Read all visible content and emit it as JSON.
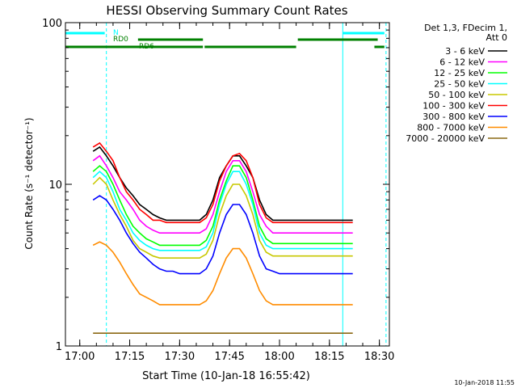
{
  "chart_data": {
    "type": "line",
    "title": "HESSI Observing Summary Count Rates",
    "xlabel": "Start Time (10-Jan-18 16:55:42)",
    "ylabel": "Count Rate (s⁻¹ detector⁻¹)",
    "y_scale": "log",
    "ylim": [
      1,
      100
    ],
    "xlim": [
      "16:55:42",
      "18:33:00"
    ],
    "x_ticks": [
      "17:00",
      "17:15",
      "17:30",
      "17:45",
      "18:00",
      "18:15",
      "18:30"
    ],
    "y_ticks": [
      "1",
      "10",
      "100"
    ],
    "grid": false,
    "legend_position": "right",
    "legend_header": [
      "Det 1,3, FDecim 1,",
      "Att 0"
    ],
    "series": [
      {
        "name": "3 - 6 keV",
        "color": "#000000",
        "x": [
          "17:04",
          "17:06",
          "17:08",
          "17:10",
          "17:12",
          "17:14",
          "17:16",
          "17:18",
          "17:20",
          "17:22",
          "17:24",
          "17:26",
          "17:28",
          "17:30",
          "17:32",
          "17:34",
          "17:36",
          "17:38",
          "17:40",
          "17:42",
          "17:44",
          "17:46",
          "17:48",
          "17:50",
          "17:52",
          "17:54",
          "17:56",
          "17:58",
          "18:00",
          "18:02",
          "18:04",
          "18:06",
          "18:08",
          "18:10",
          "18:12",
          "18:14",
          "18:16",
          "18:18",
          "18:20",
          "18:22"
        ],
        "values": [
          16,
          17,
          15,
          13,
          11,
          9.5,
          8.5,
          7.5,
          7,
          6.5,
          6.2,
          6,
          6,
          6,
          6,
          6,
          6,
          6.5,
          8,
          11,
          13,
          15,
          15,
          13,
          11,
          8,
          6.5,
          6,
          6,
          6,
          6,
          6,
          6,
          6,
          6,
          6,
          6,
          6,
          6,
          6
        ]
      },
      {
        "name": "6 - 12 keV",
        "color": "#ff00ff",
        "x": [
          "17:04",
          "17:06",
          "17:08",
          "17:10",
          "17:12",
          "17:14",
          "17:16",
          "17:18",
          "17:20",
          "17:22",
          "17:24",
          "17:26",
          "17:28",
          "17:30",
          "17:32",
          "17:34",
          "17:36",
          "17:38",
          "17:40",
          "17:42",
          "17:44",
          "17:46",
          "17:48",
          "17:50",
          "17:52",
          "17:54",
          "17:56",
          "17:58",
          "18:00",
          "18:02",
          "18:04",
          "18:06",
          "18:08",
          "18:10",
          "18:12",
          "18:14",
          "18:16",
          "18:18",
          "18:20",
          "18:22"
        ],
        "values": [
          14,
          15,
          13,
          11,
          9,
          8,
          7,
          6,
          5.5,
          5.2,
          5,
          5,
          5,
          5,
          5,
          5,
          5,
          5.3,
          6.5,
          9,
          12,
          14,
          14,
          12,
          9,
          6.5,
          5.5,
          5,
          5,
          5,
          5,
          5,
          5,
          5,
          5,
          5,
          5,
          5,
          5,
          5
        ]
      },
      {
        "name": "12 - 25 keV",
        "color": "#00ff00",
        "x": [
          "17:04",
          "17:06",
          "17:08",
          "17:10",
          "17:12",
          "17:14",
          "17:16",
          "17:18",
          "17:20",
          "17:22",
          "17:24",
          "17:26",
          "17:28",
          "17:30",
          "17:32",
          "17:34",
          "17:36",
          "17:38",
          "17:40",
          "17:42",
          "17:44",
          "17:46",
          "17:48",
          "17:50",
          "17:52",
          "17:54",
          "17:56",
          "17:58",
          "18:00",
          "18:02",
          "18:04",
          "18:06",
          "18:08",
          "18:10",
          "18:12",
          "18:14",
          "18:16",
          "18:18",
          "18:20",
          "18:22"
        ],
        "values": [
          12,
          13,
          12,
          10,
          8,
          6.5,
          5.5,
          5,
          4.6,
          4.4,
          4.2,
          4.2,
          4.2,
          4.2,
          4.2,
          4.2,
          4.2,
          4.5,
          5.5,
          8,
          10.5,
          13,
          13,
          11,
          8,
          5.5,
          4.6,
          4.3,
          4.3,
          4.3,
          4.3,
          4.3,
          4.3,
          4.3,
          4.3,
          4.3,
          4.3,
          4.3,
          4.3,
          4.3
        ]
      },
      {
        "name": "25 - 50 keV",
        "color": "#00ffff",
        "x": [
          "17:04",
          "17:06",
          "17:08",
          "17:10",
          "17:12",
          "17:14",
          "17:16",
          "17:18",
          "17:20",
          "17:22",
          "17:24",
          "17:26",
          "17:28",
          "17:30",
          "17:32",
          "17:34",
          "17:36",
          "17:38",
          "17:40",
          "17:42",
          "17:44",
          "17:46",
          "17:48",
          "17:50",
          "17:52",
          "17:54",
          "17:56",
          "17:58",
          "18:00",
          "18:02",
          "18:04",
          "18:06",
          "18:08",
          "18:10",
          "18:12",
          "18:14",
          "18:16",
          "18:18",
          "18:20",
          "18:22"
        ],
        "values": [
          11,
          12,
          11,
          9,
          7,
          6,
          5,
          4.5,
          4.2,
          4,
          3.9,
          3.9,
          3.9,
          3.9,
          3.9,
          3.9,
          3.9,
          4.1,
          5,
          7.5,
          10,
          12,
          12,
          10,
          7.5,
          5,
          4.2,
          4,
          4,
          4,
          4,
          4,
          4,
          4,
          4,
          4,
          4,
          4,
          4,
          4
        ]
      },
      {
        "name": "50 - 100 keV",
        "color": "#c8c800",
        "x": [
          "17:04",
          "17:06",
          "17:08",
          "17:10",
          "17:12",
          "17:14",
          "17:16",
          "17:18",
          "17:20",
          "17:22",
          "17:24",
          "17:26",
          "17:28",
          "17:30",
          "17:32",
          "17:34",
          "17:36",
          "17:38",
          "17:40",
          "17:42",
          "17:44",
          "17:46",
          "17:48",
          "17:50",
          "17:52",
          "17:54",
          "17:56",
          "17:58",
          "18:00",
          "18:02",
          "18:04",
          "18:06",
          "18:08",
          "18:10",
          "18:12",
          "18:14",
          "18:16",
          "18:18",
          "18:20",
          "18:22"
        ],
        "values": [
          10,
          11,
          10,
          8,
          6.5,
          5.5,
          4.5,
          4,
          3.8,
          3.6,
          3.5,
          3.5,
          3.5,
          3.5,
          3.5,
          3.5,
          3.5,
          3.7,
          4.5,
          6.5,
          8.5,
          10,
          10,
          8.5,
          6.5,
          4.5,
          3.8,
          3.6,
          3.6,
          3.6,
          3.6,
          3.6,
          3.6,
          3.6,
          3.6,
          3.6,
          3.6,
          3.6,
          3.6,
          3.6
        ]
      },
      {
        "name": "100 - 300 keV",
        "color": "#ff0000",
        "x": [
          "17:04",
          "17:06",
          "17:08",
          "17:10",
          "17:12",
          "17:14",
          "17:16",
          "17:18",
          "17:20",
          "17:22",
          "17:24",
          "17:26",
          "17:28",
          "17:30",
          "17:32",
          "17:34",
          "17:36",
          "17:38",
          "17:40",
          "17:42",
          "17:44",
          "17:46",
          "17:48",
          "17:50",
          "17:52",
          "17:54",
          "17:56",
          "17:58",
          "18:00",
          "18:02",
          "18:04",
          "18:06",
          "18:08",
          "18:10",
          "18:12",
          "18:14",
          "18:16",
          "18:18",
          "18:20",
          "18:22"
        ],
        "values": [
          17,
          18,
          16,
          14,
          11,
          9,
          8,
          7,
          6.5,
          6,
          6,
          5.8,
          5.8,
          5.8,
          5.8,
          5.8,
          5.8,
          6.2,
          7.5,
          10.5,
          13,
          15,
          15.5,
          14,
          11,
          7.5,
          6.2,
          5.8,
          5.8,
          5.8,
          5.8,
          5.8,
          5.8,
          5.8,
          5.8,
          5.8,
          5.8,
          5.8,
          5.8,
          5.8
        ]
      },
      {
        "name": "300 - 800 keV",
        "color": "#0000ff",
        "x": [
          "17:04",
          "17:06",
          "17:08",
          "17:10",
          "17:12",
          "17:14",
          "17:16",
          "17:18",
          "17:20",
          "17:22",
          "17:24",
          "17:26",
          "17:28",
          "17:30",
          "17:32",
          "17:34",
          "17:36",
          "17:38",
          "17:40",
          "17:42",
          "17:44",
          "17:46",
          "17:48",
          "17:50",
          "17:52",
          "17:54",
          "17:56",
          "17:58",
          "18:00",
          "18:02",
          "18:04",
          "18:06",
          "18:08",
          "18:10",
          "18:12",
          "18:14",
          "18:16",
          "18:18",
          "18:20",
          "18:22"
        ],
        "values": [
          8,
          8.5,
          8,
          7,
          6,
          5,
          4.3,
          3.8,
          3.5,
          3.2,
          3,
          2.9,
          2.9,
          2.8,
          2.8,
          2.8,
          2.8,
          3,
          3.6,
          5,
          6.5,
          7.5,
          7.5,
          6.5,
          5,
          3.6,
          3,
          2.9,
          2.8,
          2.8,
          2.8,
          2.8,
          2.8,
          2.8,
          2.8,
          2.8,
          2.8,
          2.8,
          2.8,
          2.8
        ]
      },
      {
        "name": "800 - 7000 keV",
        "color": "#ff8c00",
        "x": [
          "17:04",
          "17:06",
          "17:08",
          "17:10",
          "17:12",
          "17:14",
          "17:16",
          "17:18",
          "17:20",
          "17:22",
          "17:24",
          "17:26",
          "17:28",
          "17:30",
          "17:32",
          "17:34",
          "17:36",
          "17:38",
          "17:40",
          "17:42",
          "17:44",
          "17:46",
          "17:48",
          "17:50",
          "17:52",
          "17:54",
          "17:56",
          "17:58",
          "18:00",
          "18:02",
          "18:04",
          "18:06",
          "18:08",
          "18:10",
          "18:12",
          "18:14",
          "18:16",
          "18:18",
          "18:20",
          "18:22"
        ],
        "values": [
          4.2,
          4.4,
          4.2,
          3.8,
          3.3,
          2.8,
          2.4,
          2.1,
          2,
          1.9,
          1.8,
          1.8,
          1.8,
          1.8,
          1.8,
          1.8,
          1.8,
          1.9,
          2.2,
          2.8,
          3.5,
          4,
          4,
          3.5,
          2.8,
          2.2,
          1.9,
          1.8,
          1.8,
          1.8,
          1.8,
          1.8,
          1.8,
          1.8,
          1.8,
          1.8,
          1.8,
          1.8,
          1.8,
          1.8
        ]
      },
      {
        "name": "7000 - 20000 keV",
        "color": "#8b6914",
        "x": [
          "17:04",
          "17:06",
          "17:08",
          "17:10",
          "17:12",
          "17:14",
          "17:16",
          "17:18",
          "17:20",
          "17:22",
          "17:24",
          "17:26",
          "17:28",
          "17:30",
          "17:32",
          "17:34",
          "17:36",
          "17:38",
          "17:40",
          "17:42",
          "17:44",
          "17:46",
          "17:48",
          "17:50",
          "17:52",
          "17:54",
          "17:56",
          "17:58",
          "18:00",
          "18:02",
          "18:04",
          "18:06",
          "18:08",
          "18:10",
          "18:12",
          "18:14",
          "18:16",
          "18:18",
          "18:20",
          "18:22"
        ],
        "values": [
          1.2,
          1.2,
          1.2,
          1.2,
          1.2,
          1.2,
          1.2,
          1.2,
          1.2,
          1.2,
          1.2,
          1.2,
          1.2,
          1.2,
          1.2,
          1.2,
          1.2,
          1.2,
          1.2,
          1.2,
          1.2,
          1.2,
          1.2,
          1.2,
          1.2,
          1.2,
          1.2,
          1.2,
          1.2,
          1.2,
          1.2,
          1.2,
          1.2,
          1.2,
          1.2,
          1.2,
          1.2,
          1.2,
          1.2,
          1.2
        ]
      }
    ],
    "flag_bars": [
      {
        "label": "N",
        "color": "#00ffff",
        "segments": [
          [
            "16:55:42",
            "17:07:30"
          ],
          [
            "18:19:00",
            "18:31:30"
          ]
        ]
      },
      {
        "label": "RD0",
        "color": "#008000",
        "segments": [
          [
            "17:17:30",
            "17:37:00"
          ],
          [
            "18:05:30",
            "18:29:30"
          ]
        ]
      },
      {
        "label": "RD6",
        "color": "#008000",
        "segments": [
          [
            "16:55:42",
            "17:37:00"
          ],
          [
            "17:37:30",
            "18:05:00"
          ],
          [
            "18:28:30",
            "18:31:30"
          ]
        ]
      }
    ],
    "vertical_lines": [
      {
        "time": "16:55:42",
        "style": "solid",
        "color": "#00ffff"
      },
      {
        "time": "17:08:00",
        "style": "dashed",
        "color": "#00ffff"
      },
      {
        "time": "18:19:00",
        "style": "solid",
        "color": "#00ffff"
      },
      {
        "time": "18:32:00",
        "style": "dashed",
        "color": "#00ffff"
      }
    ],
    "footer_date": "10-Jan-2018 11:55"
  }
}
